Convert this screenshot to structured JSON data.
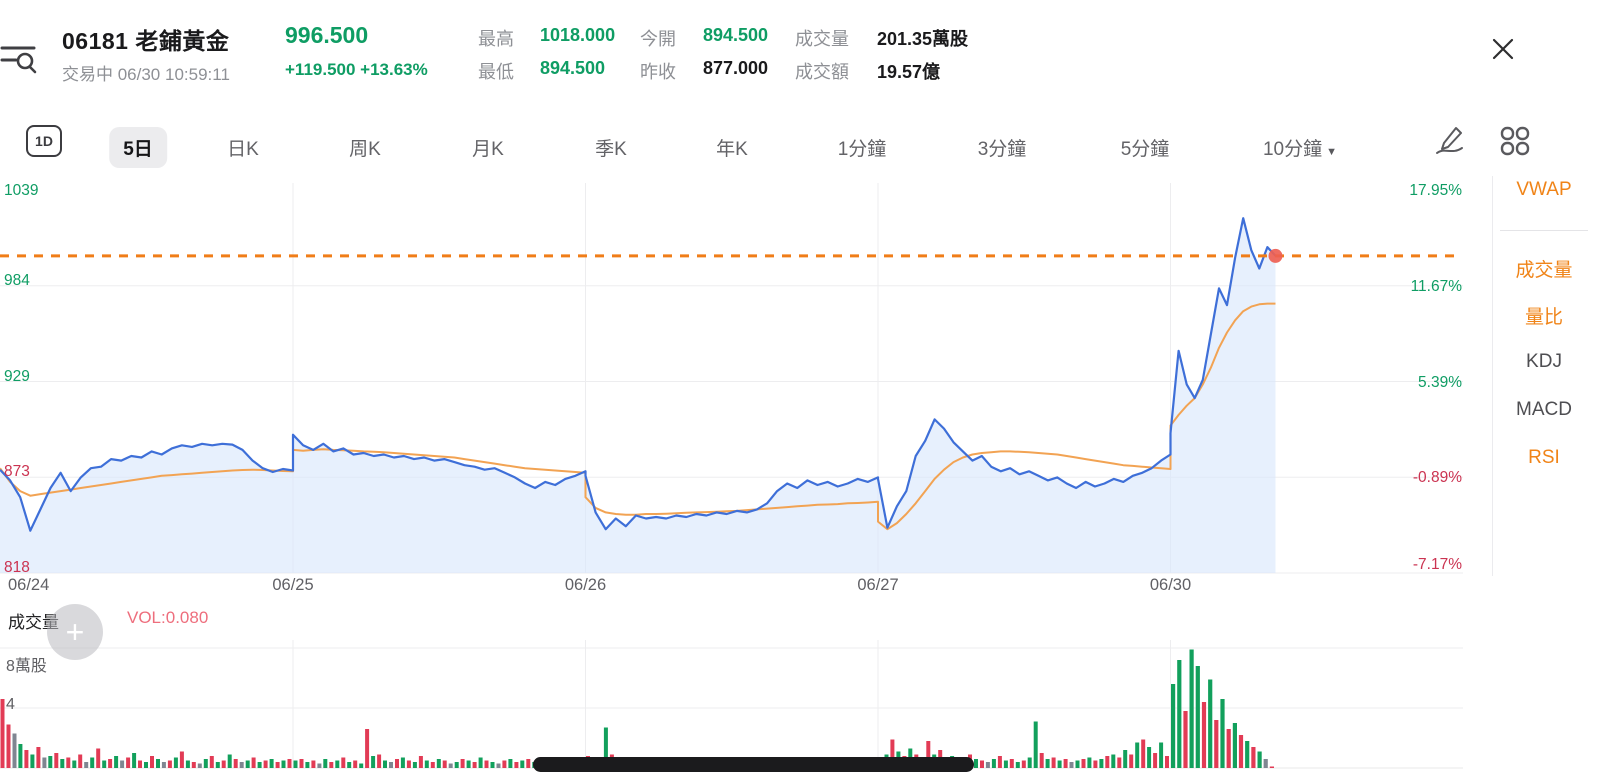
{
  "header": {
    "code_name": "06181 老鋪黃金",
    "price": "996.500",
    "status_line": "交易中 06/30 10:59:11",
    "change": "+119.500 +13.63%",
    "stats": [
      {
        "label": "最高",
        "value": "1018.000",
        "tone": "up"
      },
      {
        "label": "最低",
        "value": "894.500",
        "tone": "up"
      },
      {
        "label": "今開",
        "value": "894.500",
        "tone": "up"
      },
      {
        "label": "昨收",
        "value": "877.000",
        "tone": "neutral"
      },
      {
        "label": "成交量",
        "value": "201.35萬股",
        "tone": "neutral"
      },
      {
        "label": "成交額",
        "value": "19.57億",
        "tone": "neutral"
      }
    ]
  },
  "toolbar": {
    "tabs": [
      "1D",
      "5日",
      "日K",
      "周K",
      "月K",
      "季K",
      "年K",
      "1分鐘",
      "3分鐘",
      "5分鐘",
      "10分鐘"
    ],
    "active_label": "5日",
    "dropdown_tab": "10分鐘"
  },
  "indicator_sidebar": {
    "items": [
      {
        "label": "VWAP",
        "active": true
      },
      {
        "label": "成交量",
        "active": true
      },
      {
        "label": "量比",
        "active": true
      },
      {
        "label": "KDJ",
        "active": false
      },
      {
        "label": "MACD",
        "active": false
      },
      {
        "label": "RSI",
        "active": true
      }
    ]
  },
  "volume_header": {
    "title": "成交量",
    "vol_label": "VOL:0.080"
  },
  "colors": {
    "up": "#0f9d64",
    "down": "#cb3351",
    "price_line": "#3e6fd8",
    "fill": "#d9e6fb",
    "vwap_line": "#f2a353",
    "dashed_current": "#f07d18",
    "dot": "#ee5f52",
    "vol_red": "#e23b55",
    "vol_green": "#12a05c",
    "vol_gray": "#7f8691",
    "grid": "#ededef"
  },
  "chart_data": [
    {
      "type": "line",
      "title": "5日分時走勢 06181",
      "x_labels": [
        "06/24",
        "06/25",
        "06/26",
        "06/27",
        "06/30"
      ],
      "left_axis": [
        {
          "text": "1039",
          "tone": "up"
        },
        {
          "text": "984",
          "tone": "up"
        },
        {
          "text": "929",
          "tone": "up"
        },
        {
          "text": "873",
          "tone": "down"
        },
        {
          "text": "818",
          "tone": "down"
        }
      ],
      "right_axis": [
        {
          "text": "17.95%",
          "tone": "up"
        },
        {
          "text": "11.67%",
          "tone": "up"
        },
        {
          "text": "5.39%",
          "tone": "up"
        },
        {
          "text": "-0.89%",
          "tone": "down"
        },
        {
          "text": "-7.17%",
          "tone": "down"
        }
      ],
      "ylim_price": [
        814.1,
        1034.4
      ],
      "prev_close": 877,
      "current_price": 996.5,
      "grid": true,
      "legend_position": "none",
      "series": [
        {
          "name": "price",
          "pct_by_day": [
            [
              -0.4,
              -1.1,
              -2.2,
              -4.4,
              -3.0,
              -1.6,
              -0.6,
              -1.8,
              -0.9,
              -0.3,
              -0.2,
              0.3,
              0.2,
              0.5,
              0.4,
              0.8,
              0.6,
              1.0,
              1.2,
              1.1,
              1.3,
              1.2,
              1.3,
              1.25,
              0.9,
              0.2,
              -0.3,
              -0.55,
              -0.35,
              -0.45
            ],
            [
              1.9,
              1.2,
              0.9,
              1.3,
              0.8,
              1.0,
              0.6,
              0.7,
              0.5,
              0.6,
              0.4,
              0.5,
              0.3,
              0.4,
              0.2,
              0.3,
              0.1,
              -0.1,
              -0.2,
              -0.4,
              -0.3,
              -0.6,
              -0.9,
              -1.3,
              -1.6,
              -1.2,
              -1.4,
              -1.0,
              -0.8,
              -0.5
            ],
            [
              -0.8,
              -3.2,
              -4.3,
              -3.6,
              -4.1,
              -3.4,
              -3.6,
              -3.5,
              -3.6,
              -3.4,
              -3.5,
              -3.3,
              -3.4,
              -3.2,
              -3.3,
              -3.1,
              -3.2,
              -3.0,
              -2.6,
              -1.8,
              -1.3,
              -1.6,
              -1.1,
              -1.4,
              -1.2,
              -1.5,
              -1.3,
              -1.0,
              -1.2,
              -0.9
            ],
            [
              -1.0,
              -4.2,
              -2.8,
              -1.8,
              0.5,
              1.5,
              2.9,
              2.3,
              1.4,
              0.8,
              0.2,
              0.5,
              -0.2,
              -0.5,
              -0.3,
              -0.7,
              -0.5,
              -0.8,
              -1.1,
              -0.9,
              -1.3,
              -1.6,
              -1.2,
              -1.5,
              -1.3,
              -1.0,
              -1.2,
              -0.8,
              -0.6,
              -0.3,
              0.2,
              0.6
            ],
            [
              2.0,
              7.4,
              5.2,
              4.3,
              5.5,
              8.5,
              11.5,
              10.4,
              13.5,
              16.1,
              14.0,
              12.8,
              14.2,
              13.63
            ]
          ]
        },
        {
          "name": "VWAP",
          "pct_by_day": [
            [
              -0.3,
              -1.2,
              -1.8,
              -2.1,
              -2.0,
              -1.9,
              -1.8,
              -1.7,
              -1.6,
              -1.5,
              -1.4,
              -1.3,
              -1.2,
              -1.1,
              -1.0,
              -0.9,
              -0.8,
              -0.75,
              -0.7,
              -0.65,
              -0.6,
              -0.55,
              -0.5,
              -0.45,
              -0.42,
              -0.4,
              -0.42,
              -0.45,
              -0.48,
              -0.5
            ],
            [
              0.9,
              0.85,
              0.9,
              0.95,
              0.9,
              0.88,
              0.85,
              0.8,
              0.78,
              0.75,
              0.7,
              0.65,
              0.6,
              0.55,
              0.5,
              0.45,
              0.4,
              0.3,
              0.2,
              0.1,
              0.0,
              -0.1,
              -0.2,
              -0.3,
              -0.35,
              -0.4,
              -0.45,
              -0.5,
              -0.55,
              -0.6
            ],
            [
              -2.2,
              -2.9,
              -3.2,
              -3.3,
              -3.35,
              -3.35,
              -3.3,
              -3.3,
              -3.28,
              -3.25,
              -3.22,
              -3.2,
              -3.18,
              -3.15,
              -3.12,
              -3.1,
              -3.05,
              -3.0,
              -2.95,
              -2.9,
              -2.85,
              -2.8,
              -2.75,
              -2.7,
              -2.68,
              -2.65,
              -2.6,
              -2.58,
              -2.55,
              -2.5
            ],
            [
              -3.8,
              -4.3,
              -3.9,
              -3.3,
              -2.6,
              -1.8,
              -1.0,
              -0.4,
              0.1,
              0.4,
              0.6,
              0.7,
              0.75,
              0.8,
              0.8,
              0.78,
              0.75,
              0.7,
              0.65,
              0.6,
              0.5,
              0.4,
              0.3,
              0.2,
              0.1,
              0.0,
              -0.1,
              -0.15,
              -0.2,
              -0.25,
              -0.3,
              -0.35
            ],
            [
              2.5,
              3.2,
              3.8,
              4.3,
              5.2,
              6.3,
              7.6,
              8.6,
              9.4,
              10.0,
              10.3,
              10.45,
              10.5,
              10.5
            ]
          ]
        }
      ]
    },
    {
      "type": "bar",
      "title": "成交量",
      "ylabel_top": "8萬股",
      "ytick_mid": "4",
      "unit": "萬股",
      "current_vol": "0.080",
      "color_key": {
        "r": "down-red",
        "g": "up-green",
        "a": "gray"
      },
      "bars_by_day": [
        "r4.6 r2.9 a2.3 g1.6 r1.2 g0.9 r1.4 a0.7 g0.8 r1.0 g0.6 r0.7 g0.5 r0.9 a0.4 g0.7 r1.3 g0.5 r0.6 g0.8 a0.5 r0.7 g1.0 r0.5 g0.4 r0.8 g0.6 a0.4 r0.5 g0.7 r1.1 g0.5 r0.4 a0.3 g0.6 r0.8 g0.4 r0.5 g0.9 r0.6 a0.4 g0.5 r0.7 g0.4 r0.5 g0.6 r0.4 g0.5 r0.6",
        "g0.5 r0.6 g0.4 r0.5 a0.3 g0.6 r0.4 g0.5 r0.7 g0.4 r0.5 g0.3 r2.6 g0.8 r0.9 g0.5 a0.4 r0.6 g0.7 r0.5 g0.4 r0.8 g0.5 r0.4 g0.6 r0.5 a0.3 g0.4 r0.6 g0.5 r0.4 g0.7 r0.5 g0.4 a0.3 r0.5 g0.6 r0.4 g0.5 r0.6 g0.4 r0.5 g0.3 r0.4 g0.5 r0.3 g0.4 r0.5 g0.4",
        "r0.8 g0.6 r0.5 g2.7 r0.9 g0.6 r0.5 g0.4 a0.3 r0.5 g0.4 r0.3 g0.4 r0.5 g0.3 r0.4 a0.2 g0.3 r0.4 g0.3 r0.3 g0.4 r0.3 g0.2 r0.3 g0.3 a0.2 r0.3 g0.4 r0.3 g0.5 r0.4 g0.6 r0.4 g0.5 r0.3 g0.4 r0.5 g0.3 a0.3 r0.4 g0.5 r0.3 g0.4 r0.3 g0.5 r0.4 g0.3 r0.4",
        "r0.7 g0.9 r1.9 g1.1 r0.8 g1.3 r0.9 g0.7 r1.8 g0.9 r1.2 a0.6 g0.8 r0.7 g0.5 r0.9 g0.6 r0.5 a0.4 g0.6 r0.8 g0.5 r0.6 g0.4 r0.5 g0.7 g3.1 r1.0 g0.6 r0.7 g0.5 r0.6 a0.4 g0.5 r0.6 g0.7 r0.5 g0.6 r0.8 g0.9 r0.7 g1.2 r0.9 g1.7 r1.9 g1.4 r1.0 g1.7 r0.8",
        "g5.6 g7.2 r3.8 g7.9 g6.8 r4.4 g5.9 r3.2 g4.6 r2.6 g3.0 r2.2 g1.8 r1.4 g1.1 a0.6 r0.1"
      ]
    }
  ]
}
